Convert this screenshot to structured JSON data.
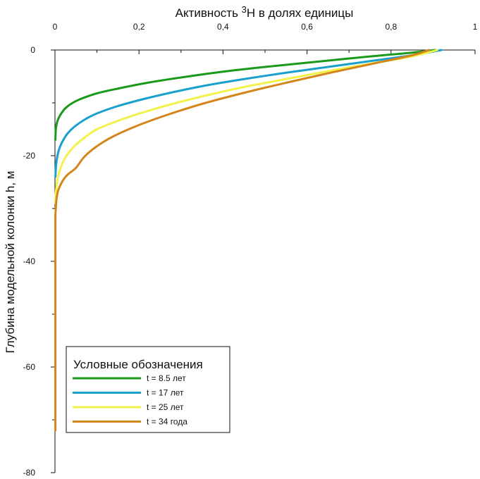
{
  "chart_data": {
    "type": "line",
    "title": "",
    "xlabel_main": "Активность ",
    "xlabel_sup": "3",
    "xlabel_rest": "H в долях единицы",
    "ylabel": "Глубина модельной колонки h, м",
    "xlim": [
      0,
      1
    ],
    "ylim": [
      -80,
      0
    ],
    "x_ticks": [
      0,
      0.2,
      0.4,
      0.6,
      0.8,
      1
    ],
    "x_tick_labels": [
      "0",
      "0,2",
      "0,4",
      "0,6",
      "0,8",
      "1"
    ],
    "y_ticks": [
      0,
      -20,
      -40,
      -60,
      -80
    ],
    "y_tick_labels": [
      "0",
      "-20",
      "-40",
      "-60",
      "-80"
    ],
    "grid": false,
    "legend": {
      "title": "Условные обозначения",
      "placement": "bottom-left"
    },
    "series": [
      {
        "name": "t = 8.5 лет",
        "color": "#1a9a1a",
        "x": [
          0.905,
          0.85,
          0.78,
          0.7,
          0.6,
          0.5,
          0.4,
          0.3,
          0.22,
          0.15,
          0.1,
          0.06,
          0.04,
          0.025,
          0.015,
          0.008,
          0.004,
          0.002,
          0.001
        ],
        "y": [
          0,
          -0.5,
          -1.0,
          -1.6,
          -2.4,
          -3.2,
          -4.1,
          -5.2,
          -6.2,
          -7.3,
          -8.2,
          -9.3,
          -10.1,
          -11.0,
          -12.0,
          -13.0,
          -14.0,
          -15.0,
          -17.0
        ]
      },
      {
        "name": "t = 17 лет",
        "color": "#1aa0cc",
        "x": [
          0.92,
          0.85,
          0.75,
          0.65,
          0.55,
          0.45,
          0.36,
          0.28,
          0.21,
          0.15,
          0.1,
          0.07,
          0.045,
          0.03,
          0.02,
          0.012,
          0.007,
          0.003,
          0.001
        ],
        "y": [
          0,
          -1.0,
          -2.1,
          -3.2,
          -4.3,
          -5.5,
          -6.7,
          -8.0,
          -9.3,
          -10.6,
          -12.0,
          -13.2,
          -14.6,
          -15.8,
          -17.0,
          -18.3,
          -19.6,
          -21.5,
          -24.0
        ]
      },
      {
        "name": "t = 25 лет",
        "color": "#f2f24a",
        "x": [
          0.91,
          0.85,
          0.75,
          0.65,
          0.55,
          0.45,
          0.36,
          0.28,
          0.21,
          0.15,
          0.1,
          0.07,
          0.05,
          0.035,
          0.02,
          0.01,
          0.005,
          0.002,
          0.001
        ],
        "y": [
          0,
          -1.2,
          -2.6,
          -4.0,
          -5.5,
          -7.0,
          -8.6,
          -10.2,
          -11.8,
          -13.4,
          -15.0,
          -16.6,
          -17.9,
          -19.2,
          -21.0,
          -23.2,
          -25.0,
          -27.0,
          -29.0
        ]
      },
      {
        "name": "t = 34 года",
        "color": "#d4861c",
        "x": [
          0.89,
          0.85,
          0.75,
          0.65,
          0.55,
          0.45,
          0.35,
          0.27,
          0.2,
          0.14,
          0.1,
          0.07,
          0.05,
          0.03,
          0.018,
          0.008,
          0.004,
          0.002,
          0.001,
          0.001,
          0.001,
          0.001
        ],
        "y": [
          0,
          -1.0,
          -2.7,
          -4.4,
          -6.2,
          -8.1,
          -10.2,
          -12.2,
          -14.2,
          -16.3,
          -18.2,
          -20.2,
          -22.3,
          -23.6,
          -24.8,
          -26.5,
          -28.0,
          -30.0,
          -32.0,
          -40.0,
          -60.0,
          -72.0
        ]
      }
    ]
  }
}
